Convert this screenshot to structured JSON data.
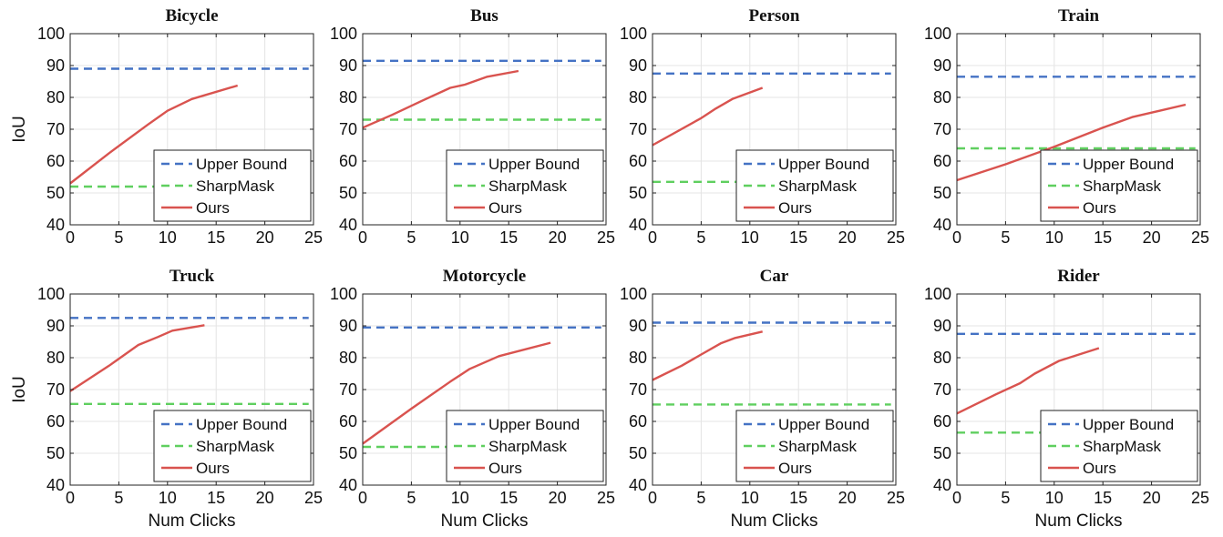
{
  "legend": {
    "entries": [
      "Upper Bound",
      "SharpMask",
      "Ours"
    ],
    "colors": [
      "#4472c4",
      "#5fcf5f",
      "#d9534f"
    ],
    "placement": "bottom-right"
  },
  "chart_data": [
    {
      "type": "line",
      "title": "Bicycle",
      "xlabel": "",
      "ylabel": "IoU",
      "xlim": [
        0,
        25
      ],
      "ylim": [
        40,
        100
      ],
      "xticks": [
        0,
        5,
        10,
        15,
        20,
        25
      ],
      "yticks": [
        40,
        50,
        60,
        70,
        80,
        90,
        100
      ],
      "grid": true,
      "series": [
        {
          "name": "Upper Bound",
          "style": "dashed",
          "x": [
            0,
            24.5
          ],
          "y": [
            89,
            89
          ]
        },
        {
          "name": "SharpMask",
          "style": "dashed",
          "x": [
            0,
            24.5
          ],
          "y": [
            52,
            52
          ]
        },
        {
          "name": "Ours",
          "style": "solid",
          "x": [
            0,
            4,
            8,
            10,
            12.5,
            17.2
          ],
          "y": [
            53,
            62.5,
            71.5,
            75.8,
            79.5,
            83.7
          ]
        }
      ]
    },
    {
      "type": "line",
      "title": "Bus",
      "xlabel": "",
      "ylabel": "",
      "xlim": [
        0,
        25
      ],
      "ylim": [
        40,
        100
      ],
      "xticks": [
        0,
        5,
        10,
        15,
        20,
        25
      ],
      "yticks": [
        40,
        50,
        60,
        70,
        80,
        90,
        100
      ],
      "grid": true,
      "series": [
        {
          "name": "Upper Bound",
          "style": "dashed",
          "x": [
            0,
            24.5
          ],
          "y": [
            91.5,
            91.5
          ]
        },
        {
          "name": "SharpMask",
          "style": "dashed",
          "x": [
            0,
            24.5
          ],
          "y": [
            73,
            73
          ]
        },
        {
          "name": "Ours",
          "style": "solid",
          "x": [
            0,
            3,
            6,
            9,
            10.5,
            12.8,
            16
          ],
          "y": [
            70.5,
            74.5,
            78.8,
            83,
            84,
            86.5,
            88.3
          ]
        }
      ]
    },
    {
      "type": "line",
      "title": "Person",
      "xlabel": "",
      "ylabel": "",
      "xlim": [
        0,
        25
      ],
      "ylim": [
        40,
        100
      ],
      "xticks": [
        0,
        5,
        10,
        15,
        20,
        25
      ],
      "yticks": [
        40,
        50,
        60,
        70,
        80,
        90,
        100
      ],
      "grid": true,
      "series": [
        {
          "name": "Upper Bound",
          "style": "dashed",
          "x": [
            0,
            24.5
          ],
          "y": [
            87.5,
            87.5
          ]
        },
        {
          "name": "SharpMask",
          "style": "dashed",
          "x": [
            0,
            24.5
          ],
          "y": [
            53.5,
            53.5
          ]
        },
        {
          "name": "Ours",
          "style": "solid",
          "x": [
            0,
            5,
            6.5,
            8.2,
            11.3
          ],
          "y": [
            65,
            73.5,
            76.5,
            79.5,
            83
          ]
        }
      ]
    },
    {
      "type": "line",
      "title": "Train",
      "xlabel": "",
      "ylabel": "",
      "xlim": [
        0,
        25
      ],
      "ylim": [
        40,
        100
      ],
      "xticks": [
        0,
        5,
        10,
        15,
        20,
        25
      ],
      "yticks": [
        40,
        50,
        60,
        70,
        80,
        90,
        100
      ],
      "grid": true,
      "series": [
        {
          "name": "Upper Bound",
          "style": "dashed",
          "x": [
            0,
            24.5
          ],
          "y": [
            86.5,
            86.5
          ]
        },
        {
          "name": "SharpMask",
          "style": "dashed",
          "x": [
            0,
            24.5
          ],
          "y": [
            64,
            64
          ]
        },
        {
          "name": "Ours",
          "style": "solid",
          "x": [
            0,
            5,
            10,
            15,
            18,
            23.5
          ],
          "y": [
            54,
            59,
            64.5,
            70.5,
            73.8,
            77.7
          ]
        }
      ]
    },
    {
      "type": "line",
      "title": "Truck",
      "xlabel": "Num Clicks",
      "ylabel": "IoU",
      "xlim": [
        0,
        25
      ],
      "ylim": [
        40,
        100
      ],
      "xticks": [
        0,
        5,
        10,
        15,
        20,
        25
      ],
      "yticks": [
        40,
        50,
        60,
        70,
        80,
        90,
        100
      ],
      "grid": true,
      "series": [
        {
          "name": "Upper Bound",
          "style": "dashed",
          "x": [
            0,
            24.5
          ],
          "y": [
            92.5,
            92.5
          ]
        },
        {
          "name": "SharpMask",
          "style": "dashed",
          "x": [
            0,
            24.5
          ],
          "y": [
            65.5,
            65.5
          ]
        },
        {
          "name": "Ours",
          "style": "solid",
          "x": [
            0,
            4,
            7,
            9,
            10.5,
            13.8
          ],
          "y": [
            69.5,
            77.5,
            84,
            86.5,
            88.5,
            90.2
          ]
        }
      ]
    },
    {
      "type": "line",
      "title": "Motorcycle",
      "xlabel": "Num Clicks",
      "ylabel": "",
      "xlim": [
        0,
        25
      ],
      "ylim": [
        40,
        100
      ],
      "xticks": [
        0,
        5,
        10,
        15,
        20,
        25
      ],
      "yticks": [
        40,
        50,
        60,
        70,
        80,
        90,
        100
      ],
      "grid": true,
      "series": [
        {
          "name": "Upper Bound",
          "style": "dashed",
          "x": [
            0,
            24.5
          ],
          "y": [
            89.5,
            89.5
          ]
        },
        {
          "name": "SharpMask",
          "style": "dashed",
          "x": [
            0,
            24.5
          ],
          "y": [
            52,
            52
          ]
        },
        {
          "name": "Ours",
          "style": "solid",
          "x": [
            0,
            5,
            9,
            11,
            14,
            19.3
          ],
          "y": [
            53,
            64,
            72.5,
            76.5,
            80.5,
            84.7
          ]
        }
      ]
    },
    {
      "type": "line",
      "title": "Car",
      "xlabel": "Num Clicks",
      "ylabel": "",
      "xlim": [
        0,
        25
      ],
      "ylim": [
        40,
        100
      ],
      "xticks": [
        0,
        5,
        10,
        15,
        20,
        25
      ],
      "yticks": [
        40,
        50,
        60,
        70,
        80,
        90,
        100
      ],
      "grid": true,
      "series": [
        {
          "name": "Upper Bound",
          "style": "dashed",
          "x": [
            0,
            24.5
          ],
          "y": [
            91,
            91
          ]
        },
        {
          "name": "SharpMask",
          "style": "dashed",
          "x": [
            0,
            24.5
          ],
          "y": [
            65.3,
            65.3
          ]
        },
        {
          "name": "Ours",
          "style": "solid",
          "x": [
            0,
            3,
            5,
            7,
            8.5,
            11.3
          ],
          "y": [
            73,
            77.5,
            81,
            84.5,
            86.2,
            88.2
          ]
        }
      ]
    },
    {
      "type": "line",
      "title": "Rider",
      "xlabel": "Num Clicks",
      "ylabel": "",
      "xlim": [
        0,
        25
      ],
      "ylim": [
        40,
        100
      ],
      "xticks": [
        0,
        5,
        10,
        15,
        20,
        25
      ],
      "yticks": [
        40,
        50,
        60,
        70,
        80,
        90,
        100
      ],
      "grid": true,
      "series": [
        {
          "name": "Upper Bound",
          "style": "dashed",
          "x": [
            0,
            24.5
          ],
          "y": [
            87.5,
            87.5
          ]
        },
        {
          "name": "SharpMask",
          "style": "dashed",
          "x": [
            0,
            24.5
          ],
          "y": [
            56.5,
            56.5
          ]
        },
        {
          "name": "Ours",
          "style": "solid",
          "x": [
            0,
            4,
            6.5,
            8,
            10.5,
            14.6
          ],
          "y": [
            62.5,
            68.5,
            72,
            75,
            79,
            83
          ]
        }
      ]
    }
  ]
}
